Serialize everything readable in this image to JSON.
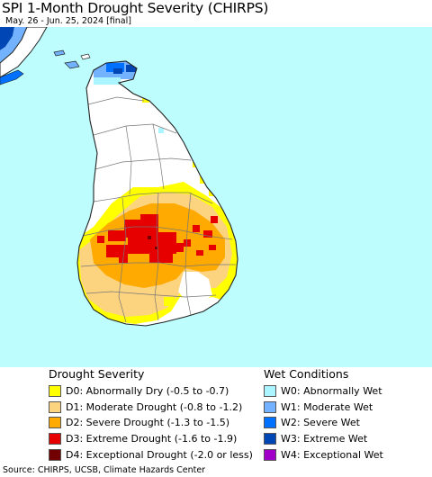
{
  "header": {
    "title": "SPI 1-Month Drought Severity (CHIRPS)",
    "subtitle": "May. 26 - Jun. 25, 2024 [final]"
  },
  "map": {
    "region": "Sri Lanka",
    "colors": {
      "ocean": "#bdfdfd",
      "land": "#ffffff",
      "border": "#666666",
      "coast": "#222222"
    }
  },
  "legend": {
    "drought": {
      "title": "Drought Severity",
      "items": [
        {
          "label": "D0: Abnormally Dry (-0.5 to -0.7)",
          "color": "#ffff00"
        },
        {
          "label": "D1: Moderate Drought (-0.8 to -1.2)",
          "color": "#fcd37f"
        },
        {
          "label": "D2: Severe Drought (-1.3 to -1.5)",
          "color": "#ffaa00"
        },
        {
          "label": "D3: Extreme Drought (-1.6 to -1.9)",
          "color": "#e60000"
        },
        {
          "label": "D4: Exceptional Drought (-2.0 or less)",
          "color": "#730000"
        }
      ]
    },
    "wet": {
      "title": "Wet Conditions",
      "items": [
        {
          "label": "W0: Abnormally Wet",
          "color": "#aaf5ff"
        },
        {
          "label": "W1: Moderate Wet",
          "color": "#73b2ff"
        },
        {
          "label": "W2: Severe Wet",
          "color": "#0070ff"
        },
        {
          "label": "W3: Extreme Wet",
          "color": "#0046b4"
        },
        {
          "label": "W4: Exceptional Wet",
          "color": "#a000c8"
        }
      ]
    }
  },
  "footer": {
    "source": "Source: CHIRPS, UCSB, Climate Hazards Center"
  }
}
